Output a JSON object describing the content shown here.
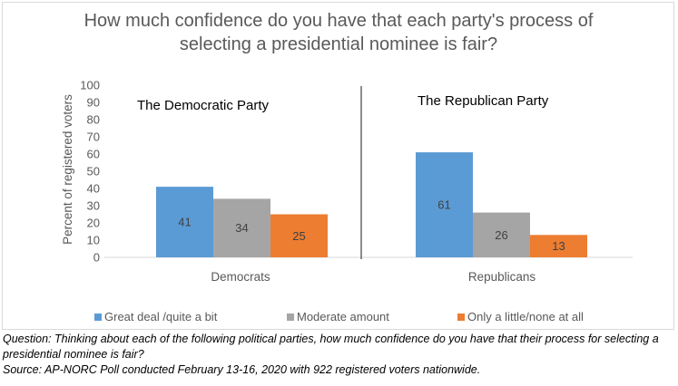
{
  "chart_data": {
    "type": "bar",
    "title": "How much confidence do you have that each party's process of selecting a presidential nominee is fair?",
    "title_lines": [
      "How much confidence do you have that each party's process of",
      "selecting a presidential nominee is fair?"
    ],
    "ylabel": "Percent of registered voters",
    "ylim": [
      0,
      100
    ],
    "yticks": [
      "0",
      "10",
      "20",
      "30",
      "40",
      "50",
      "60",
      "70",
      "80",
      "90",
      "100"
    ],
    "categories": [
      "Democrats",
      "Republicans"
    ],
    "panels": [
      "The Democratic Party",
      "The Republican Party"
    ],
    "series": [
      {
        "name": "Great deal /quite a bit",
        "color": "#5b9bd5",
        "values": [
          41,
          61
        ],
        "labels": [
          "41",
          "61"
        ]
      },
      {
        "name": "Moderate amount",
        "color": "#a5a5a5",
        "values": [
          34,
          26
        ],
        "labels": [
          "34",
          "26"
        ]
      },
      {
        "name": "Only a little/none at all",
        "color": "#ed7d31",
        "values": [
          25,
          13
        ],
        "labels": [
          "25",
          "13"
        ]
      }
    ],
    "grid": false,
    "legend": "bottom"
  },
  "notes": {
    "question": "Question: Thinking about each of the following political parties, how much confidence do you have that their process for selecting a presidential nominee is fair?",
    "source": "Source: AP-NORC Poll conducted February 13-16, 2020 with 922 registered voters nationwide."
  }
}
